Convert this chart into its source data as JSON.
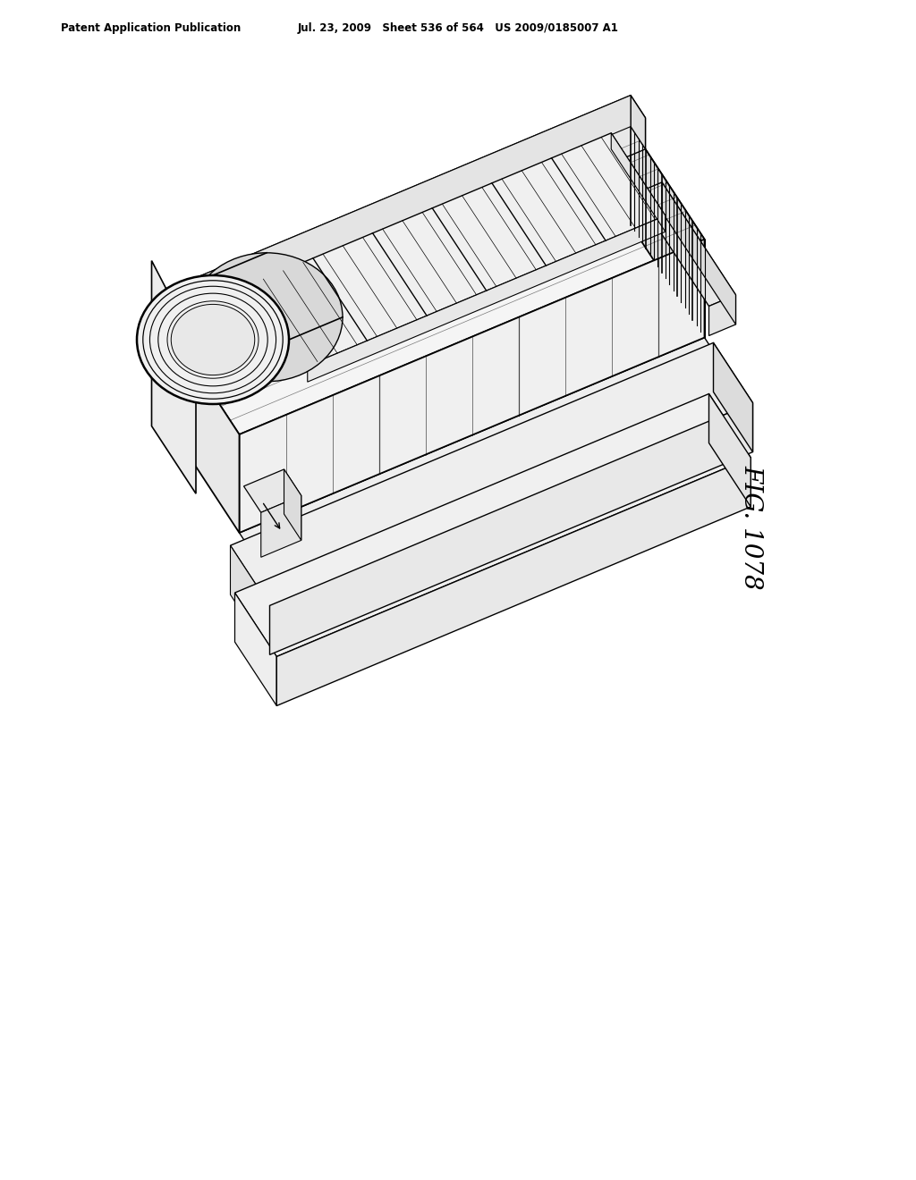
{
  "background_color": "#ffffff",
  "header_left": "Patent Application Publication",
  "header_center": "Jul. 23, 2009   Sheet 536 of 564   US 2009/0185007 A1",
  "fig_label": "FIG. 1078",
  "line_color": "#000000",
  "fig_label_fontsize": 20
}
